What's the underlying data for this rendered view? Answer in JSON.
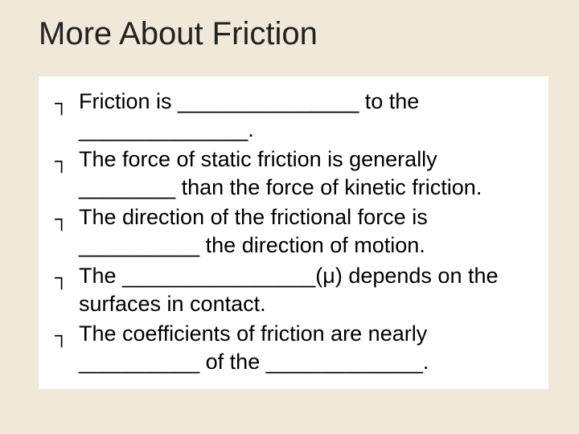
{
  "slide": {
    "background_color": "#f0e8d8",
    "content_background_color": "#ffffff",
    "title": {
      "text": "More About Friction",
      "fontsize": 40,
      "color": "#222222"
    },
    "body_fontsize": 27,
    "body_color": "#000000",
    "bullet_glyph": "┐",
    "bullets": [
      {
        "text": "Friction is _______________ to the ______________."
      },
      {
        "text": "The force of static friction is generally ________ than the force of kinetic friction."
      },
      {
        "text": "The direction of the frictional force is __________ the direction of motion."
      },
      {
        "text": "The ________________(μ) depends on the surfaces in contact."
      },
      {
        "text": "The coefficients of friction are nearly __________ of the _____________."
      }
    ]
  }
}
